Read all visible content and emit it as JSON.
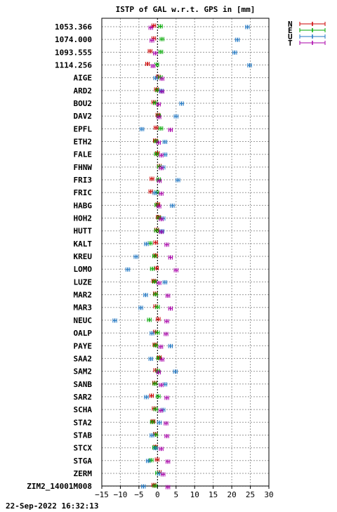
{
  "timestamp": "22-Sep-2022 16:32:13",
  "chart_data": {
    "type": "scatter",
    "title": "ISTP of GAL w.r.t. GPS in [mm]",
    "xlabel": "",
    "ylabel": "",
    "xlim": [
      -15,
      30
    ],
    "xticks": [
      "−15",
      "−10",
      "−5",
      "0",
      "5",
      "10",
      "15",
      "20",
      "25",
      "30"
    ],
    "grid": true,
    "legend_position": "top-right",
    "legend": [
      {
        "name": "N",
        "color": "#cc0000"
      },
      {
        "name": "E",
        "color": "#00aa00"
      },
      {
        "name": "U",
        "color": "#1f77c4"
      },
      {
        "name": "T",
        "color": "#aa00aa"
      }
    ],
    "categories": [
      "1053.366",
      "1074.000",
      "1093.555",
      "1114.256",
      "AIGE",
      "ARD2",
      "BOU2",
      "DAV2",
      "EPFL",
      "ETH2",
      "FALE",
      "FHNW",
      "FRI3",
      "FRIC",
      "HABG",
      "HOH2",
      "HUTT",
      "KALT",
      "KREU",
      "LOMO",
      "LUZE",
      "MAR2",
      "MAR3",
      "NEUC",
      "OALP",
      "PAYE",
      "SAA2",
      "SAM2",
      "SANB",
      "SAR2",
      "SCHA",
      "STA2",
      "STAB",
      "STCX",
      "STGA",
      "ZERM",
      "ZIM2_14001M008"
    ],
    "series": [
      {
        "name": "N",
        "color": "#cc0000",
        "values": [
          -1.0,
          -1.0,
          -2.0,
          -2.7,
          0.2,
          -0.3,
          -1.0,
          0.1,
          -0.4,
          -0.6,
          0.0,
          0.5,
          -1.5,
          -1.8,
          0.1,
          0.2,
          -0.2,
          -0.5,
          -0.5,
          -0.3,
          -1.0,
          -0.6,
          -0.5,
          0.2,
          -0.6,
          -0.7,
          0.5,
          -0.5,
          -0.8,
          -1.6,
          -0.9,
          -1.2,
          -0.6,
          -0.5,
          -0.1,
          0.5,
          -1.0
        ]
      },
      {
        "name": "E",
        "color": "#00aa00",
        "values": [
          0.8,
          1.2,
          0.9,
          -0.2,
          0.8,
          0.0,
          -0.6,
          0.3,
          0.9,
          -0.4,
          -0.3,
          0.5,
          0.3,
          -0.2,
          -0.2,
          0.4,
          -0.3,
          -2.0,
          -0.8,
          -1.4,
          -0.8,
          -0.5,
          0.0,
          -2.2,
          0.0,
          -0.5,
          0.3,
          0.1,
          -0.7,
          0.2,
          -0.5,
          -1.4,
          -0.5,
          -0.8,
          -1.7,
          0.0,
          -0.7
        ]
      },
      {
        "name": "U",
        "color": "#1f77c4",
        "values": [
          24.2,
          21.5,
          20.8,
          24.8,
          -0.5,
          1.0,
          6.5,
          5.0,
          -4.2,
          2.0,
          2.0,
          1.5,
          5.5,
          -0.7,
          4.0,
          1.5,
          1.2,
          -3.0,
          -5.8,
          -8.0,
          2.0,
          -3.2,
          -4.5,
          -11.5,
          -1.5,
          3.5,
          -1.8,
          4.8,
          2.0,
          -3.0,
          1.5,
          0.5,
          -1.5,
          -0.5,
          -2.5,
          0.5,
          -3.8
        ]
      },
      {
        "name": "T",
        "color": "#aa00aa",
        "values": [
          -1.8,
          -1.5,
          -0.6,
          -1.2,
          1.2,
          1.2,
          0.3,
          0.4,
          3.5,
          0.3,
          1.0,
          1.0,
          0.5,
          1.0,
          0.4,
          1.0,
          1.0,
          2.5,
          3.5,
          5.0,
          0.4,
          2.8,
          3.5,
          2.5,
          2.3,
          0.9,
          1.2,
          0.3,
          1.0,
          2.5,
          0.9,
          2.3,
          2.5,
          1.0,
          2.8,
          1.5,
          2.8
        ]
      }
    ]
  }
}
